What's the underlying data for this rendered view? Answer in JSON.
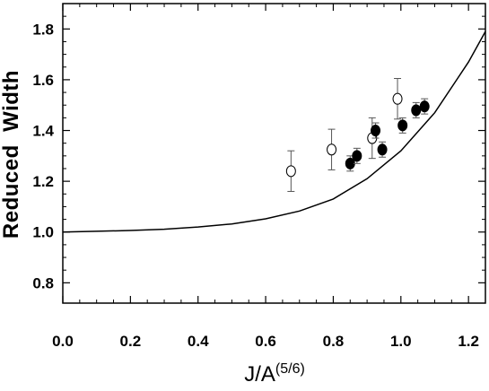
{
  "chart_data": {
    "type": "scatter",
    "title": "",
    "xlabel": "J/A",
    "xlabel_superscript": "(5/6)",
    "ylabel": "Reduced  Width",
    "xlim": [
      0.0,
      1.25
    ],
    "ylim": [
      0.72,
      1.9
    ],
    "x_ticks": [
      "0.0",
      "0.2",
      "0.4",
      "0.6",
      "0.8",
      "1.0",
      "1.2"
    ],
    "y_ticks": [
      "0.8",
      "1.0",
      "1.2",
      "1.4",
      "1.6",
      "1.8"
    ],
    "grid": false,
    "series": [
      {
        "marker": "open-circle",
        "points": [
          {
            "x": 0.675,
            "y": 1.24,
            "err": 0.08
          },
          {
            "x": 0.795,
            "y": 1.325,
            "err": 0.08
          },
          {
            "x": 0.915,
            "y": 1.37,
            "err": 0.08
          },
          {
            "x": 0.99,
            "y": 1.525,
            "err": 0.08
          }
        ]
      },
      {
        "marker": "filled-circle",
        "points": [
          {
            "x": 0.85,
            "y": 1.27,
            "err": 0.03
          },
          {
            "x": 0.87,
            "y": 1.3,
            "err": 0.03
          },
          {
            "x": 0.925,
            "y": 1.4,
            "err": 0.03
          },
          {
            "x": 0.945,
            "y": 1.325,
            "err": 0.03
          },
          {
            "x": 1.005,
            "y": 1.42,
            "err": 0.03
          },
          {
            "x": 1.045,
            "y": 1.48,
            "err": 0.03
          },
          {
            "x": 1.07,
            "y": 1.495,
            "err": 0.03
          }
        ]
      },
      {
        "marker": "line",
        "points": [
          {
            "x": 0.0,
            "y": 1.0
          },
          {
            "x": 0.1,
            "y": 1.003
          },
          {
            "x": 0.2,
            "y": 1.006
          },
          {
            "x": 0.3,
            "y": 1.011
          },
          {
            "x": 0.4,
            "y": 1.02
          },
          {
            "x": 0.5,
            "y": 1.032
          },
          {
            "x": 0.6,
            "y": 1.052
          },
          {
            "x": 0.7,
            "y": 1.083
          },
          {
            "x": 0.8,
            "y": 1.13
          },
          {
            "x": 0.9,
            "y": 1.21
          },
          {
            "x": 1.0,
            "y": 1.32
          },
          {
            "x": 1.1,
            "y": 1.47
          },
          {
            "x": 1.2,
            "y": 1.67
          },
          {
            "x": 1.25,
            "y": 1.79
          }
        ]
      }
    ]
  }
}
